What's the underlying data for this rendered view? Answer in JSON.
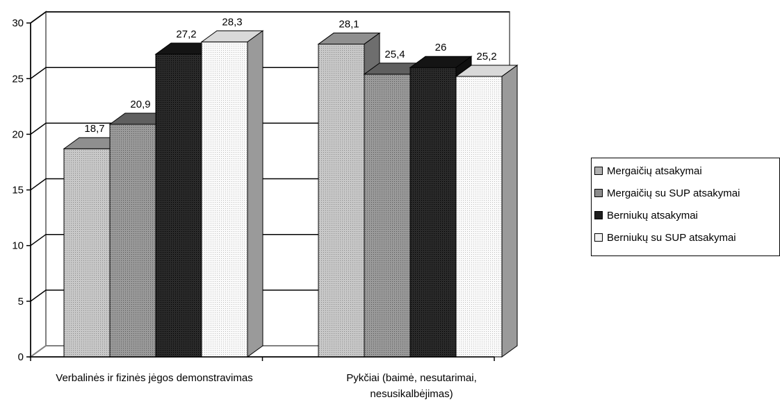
{
  "chart_data": {
    "type": "bar",
    "categories": [
      "Verbalinės ir fizinės jėgos demonstravimas",
      "Pykčiai (baimė, nesutarimai, nesusikalbėjimas)"
    ],
    "category_lines": [
      [
        "Verbalinės ir fizinės jėgos demonstravimas"
      ],
      [
        "Pykčiai (baimė, nesutarimai,",
        "nesusikalbėjimas)"
      ]
    ],
    "series": [
      {
        "name": "Mergaičių atsakymai",
        "values": [
          18.7,
          28.1
        ],
        "labels": [
          "18,7",
          "28,1"
        ],
        "color": "#b0b0b0"
      },
      {
        "name": "Mergaičių su SUP atsakymai",
        "values": [
          20.9,
          25.4
        ],
        "labels": [
          "20,9",
          "25,4"
        ],
        "color": "#8c8c8c"
      },
      {
        "name": "Berniukų atsakymai",
        "values": [
          27.2,
          26
        ],
        "labels": [
          "27,2",
          "26"
        ],
        "color": "#1e1e1e"
      },
      {
        "name": "Berniukų su SUP atsakymai",
        "values": [
          28.3,
          25.2
        ],
        "labels": [
          "28,3",
          "25,2"
        ],
        "color": "#f2f2f2"
      }
    ],
    "y_ticks": [
      0,
      5,
      10,
      15,
      20,
      25,
      30
    ],
    "ylim": [
      0,
      30
    ],
    "grid": true,
    "legend_position": "right",
    "style": "3d-clustered-column"
  }
}
